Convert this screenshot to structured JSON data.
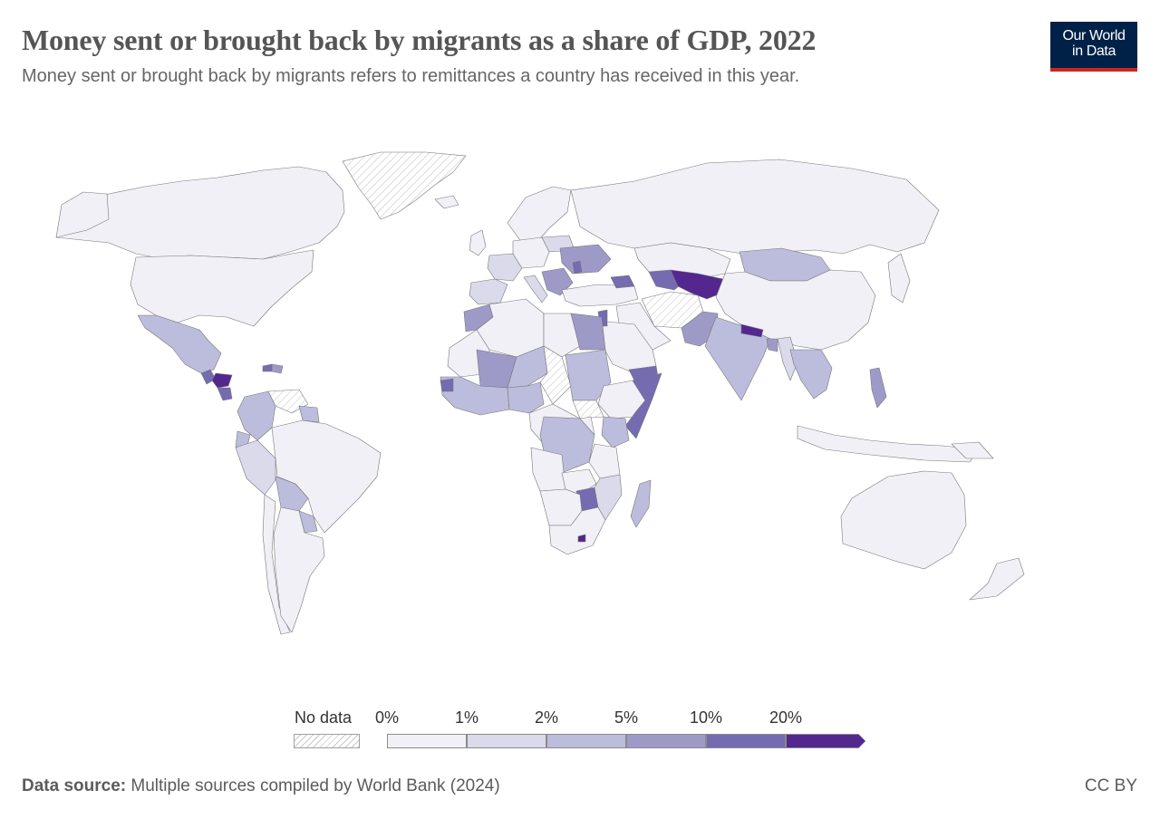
{
  "title": "Money sent or brought back by migrants as a share of GDP, 2022",
  "subtitle": "Money sent or brought back by migrants refers to remittances a country has received in this year.",
  "logo": {
    "line1": "Our World",
    "line2": "in Data"
  },
  "legend": {
    "no_data_label": "No data",
    "ticks": [
      "0%",
      "1%",
      "2%",
      "5%",
      "10%",
      "20%"
    ],
    "colors": [
      "#f2f0f7",
      "#dadaeb",
      "#bcbddc",
      "#9e9ac8",
      "#756bb1",
      "#54278f"
    ],
    "no_data_pattern": "hatched"
  },
  "footer": {
    "source_label": "Data source:",
    "source_text": "Multiple sources compiled by World Bank (2024)",
    "license": "CC BY"
  },
  "map": {
    "projection": "Robinson",
    "countries": [
      {
        "name": "Canada",
        "bin": 0
      },
      {
        "name": "United States",
        "bin": 0
      },
      {
        "name": "Greenland",
        "bin": "no-data"
      },
      {
        "name": "Mexico",
        "bin": 2
      },
      {
        "name": "Guatemala",
        "bin": 5
      },
      {
        "name": "Honduras",
        "bin": 5
      },
      {
        "name": "El Salvador",
        "bin": 5
      },
      {
        "name": "Nicaragua",
        "bin": 4
      },
      {
        "name": "Haiti",
        "bin": 4
      },
      {
        "name": "Jamaica",
        "bin": 4
      },
      {
        "name": "Dominican Republic",
        "bin": 3
      },
      {
        "name": "Venezuela",
        "bin": "no-data"
      },
      {
        "name": "Colombia",
        "bin": 2
      },
      {
        "name": "Ecuador",
        "bin": 2
      },
      {
        "name": "Peru",
        "bin": 1
      },
      {
        "name": "Bolivia",
        "bin": 2
      },
      {
        "name": "Paraguay",
        "bin": 2
      },
      {
        "name": "Brazil",
        "bin": 0
      },
      {
        "name": "Argentina",
        "bin": 0
      },
      {
        "name": "Chile",
        "bin": 0
      },
      {
        "name": "Guyana",
        "bin": 2
      },
      {
        "name": "Russia",
        "bin": 0
      },
      {
        "name": "Ukraine",
        "bin": 3
      },
      {
        "name": "Moldova",
        "bin": 4
      },
      {
        "name": "Kazakhstan",
        "bin": 0
      },
      {
        "name": "Mongolia",
        "bin": 2
      },
      {
        "name": "China",
        "bin": 0
      },
      {
        "name": "Kyrgyzstan",
        "bin": 5
      },
      {
        "name": "Tajikistan",
        "bin": 5
      },
      {
        "name": "Uzbekistan",
        "bin": 4
      },
      {
        "name": "Afghanistan",
        "bin": "no-data"
      },
      {
        "name": "Pakistan",
        "bin": 3
      },
      {
        "name": "India",
        "bin": 2
      },
      {
        "name": "Nepal",
        "bin": 5
      },
      {
        "name": "Bangladesh",
        "bin": 3
      },
      {
        "name": "Myanmar",
        "bin": 1
      },
      {
        "name": "Philippines",
        "bin": 3
      },
      {
        "name": "Vietnam",
        "bin": 2
      },
      {
        "name": "Indonesia",
        "bin": 0
      },
      {
        "name": "Australia",
        "bin": 0
      },
      {
        "name": "Egypt",
        "bin": 3
      },
      {
        "name": "Libya",
        "bin": "no-data"
      },
      {
        "name": "Algeria",
        "bin": 0
      },
      {
        "name": "Morocco",
        "bin": 3
      },
      {
        "name": "Mali",
        "bin": 3
      },
      {
        "name": "Niger",
        "bin": 0
      },
      {
        "name": "Chad",
        "bin": 0
      },
      {
        "name": "Sudan",
        "bin": 2
      },
      {
        "name": "South Sudan",
        "bin": "no-data"
      },
      {
        "name": "Yemen",
        "bin": 4
      },
      {
        "name": "Somalia",
        "bin": 4
      },
      {
        "name": "Kenya",
        "bin": 2
      },
      {
        "name": "DR Congo",
        "bin": 1
      },
      {
        "name": "Zimbabwe",
        "bin": 4
      },
      {
        "name": "Lesotho",
        "bin": 5
      },
      {
        "name": "Madagascar",
        "bin": 2
      },
      {
        "name": "South Africa",
        "bin": 0
      },
      {
        "name": "Senegal",
        "bin": 3
      },
      {
        "name": "Gambia",
        "bin": 4
      },
      {
        "name": "Nigeria",
        "bin": 2
      },
      {
        "name": "Saudi Arabia",
        "bin": 0
      },
      {
        "name": "Iran",
        "bin": 0
      },
      {
        "name": "Lebanon",
        "bin": 5
      },
      {
        "name": "Jordan",
        "bin": 3
      },
      {
        "name": "Armenia",
        "bin": 3
      },
      {
        "name": "Georgia",
        "bin": 4
      }
    ]
  }
}
